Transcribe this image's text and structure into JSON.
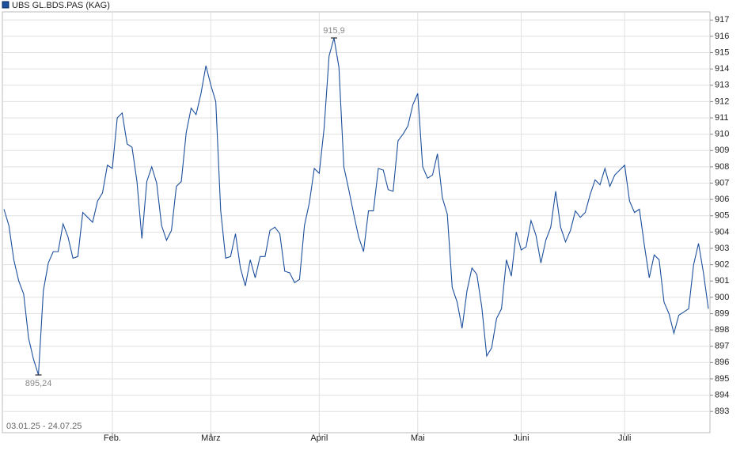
{
  "chart_data": {
    "type": "line",
    "date_range": "03.01.25 - 24.07.25",
    "categories": [
      null,
      null,
      null,
      null,
      null,
      null,
      null,
      null,
      null,
      null,
      null,
      null,
      null,
      null,
      null,
      null,
      null,
      null,
      null,
      null,
      null,
      null,
      "Feb.",
      null,
      null,
      null,
      null,
      null,
      null,
      null,
      null,
      null,
      null,
      null,
      null,
      null,
      null,
      null,
      null,
      null,
      null,
      null,
      "März",
      null,
      null,
      null,
      null,
      null,
      null,
      null,
      null,
      null,
      null,
      null,
      null,
      null,
      null,
      null,
      null,
      null,
      null,
      null,
      null,
      null,
      "April",
      null,
      null,
      null,
      null,
      null,
      null,
      null,
      null,
      null,
      null,
      null,
      null,
      null,
      null,
      null,
      null,
      null,
      null,
      null,
      "Mai",
      null,
      null,
      null,
      null,
      null,
      null,
      null,
      null,
      null,
      null,
      null,
      null,
      null,
      null,
      null,
      null,
      null,
      null,
      null,
      null,
      "Juni",
      null,
      null,
      null,
      null,
      null,
      null,
      null,
      null,
      null,
      null,
      null,
      null,
      null,
      null,
      null,
      null,
      null,
      null,
      null,
      null,
      "Juli",
      null,
      null,
      null,
      null,
      null,
      null,
      null,
      null,
      null,
      null,
      null,
      null,
      null,
      null,
      null,
      null,
      null
    ],
    "series": [
      {
        "name": "UBS GL.BDS.PAS (KAG)",
        "color": "#1c4f9c",
        "values": [
          905.4,
          904.4,
          902.3,
          901.0,
          900.2,
          897.5,
          896.2,
          895.24,
          900.4,
          902.1,
          902.8,
          902.8,
          904.5,
          903.7,
          902.4,
          902.5,
          905.2,
          904.9,
          904.6,
          905.9,
          906.4,
          908.1,
          907.9,
          911.0,
          911.3,
          909.4,
          909.2,
          907.1,
          903.6,
          907.1,
          908.0,
          907.0,
          904.4,
          903.5,
          904.1,
          906.8,
          907.1,
          910.1,
          911.6,
          911.2,
          912.5,
          914.2,
          913.0,
          912.0,
          905.3,
          902.4,
          902.5,
          903.9,
          901.8,
          900.7,
          902.3,
          901.2,
          902.5,
          902.5,
          904.1,
          904.3,
          903.9,
          901.6,
          901.5,
          900.9,
          901.1,
          904.4,
          905.8,
          907.9,
          907.6,
          910.4,
          914.8,
          915.9,
          914.1,
          908.0,
          906.6,
          905.1,
          903.7,
          902.8,
          905.3,
          905.3,
          907.9,
          907.8,
          906.6,
          906.5,
          909.6,
          910.0,
          910.5,
          911.8,
          912.5,
          908.0,
          907.3,
          907.5,
          908.8,
          906.1,
          905.1,
          900.6,
          899.7,
          898.1,
          900.4,
          901.8,
          901.4,
          899.4,
          896.4,
          896.9,
          898.7,
          899.3,
          902.3,
          901.3,
          904.0,
          902.9,
          903.1,
          904.7,
          903.8,
          902.1,
          903.5,
          904.3,
          906.5,
          904.3,
          903.4,
          904.1,
          905.3,
          904.9,
          905.2,
          906.3,
          907.2,
          906.9,
          907.9,
          906.8,
          907.5,
          907.8,
          908.1,
          905.9,
          905.2,
          905.4,
          903.2,
          901.2,
          902.6,
          902.3,
          899.7,
          899.0,
          897.8,
          898.9,
          899.1,
          899.3,
          902.0,
          903.3,
          901.5,
          899.3
        ],
        "value_labels": [
          null,
          null,
          null,
          null,
          null,
          null,
          null,
          "895,24",
          null,
          null,
          null,
          null,
          null,
          null,
          null,
          null,
          null,
          null,
          null,
          null,
          null,
          null,
          null,
          null,
          null,
          null,
          null,
          null,
          null,
          null,
          null,
          null,
          null,
          null,
          null,
          null,
          null,
          null,
          null,
          null,
          null,
          null,
          null,
          null,
          null,
          null,
          null,
          null,
          null,
          null,
          null,
          null,
          null,
          null,
          null,
          null,
          null,
          null,
          null,
          null,
          null,
          null,
          null,
          null,
          null,
          null,
          null,
          "915,9",
          null,
          null,
          null,
          null,
          null,
          null,
          null,
          null,
          null,
          null,
          null,
          null,
          null,
          null,
          null,
          null,
          null,
          null,
          null,
          null,
          null,
          null,
          null,
          null,
          null,
          null,
          null,
          null,
          null,
          null,
          null,
          null,
          null,
          null,
          null,
          null,
          null,
          null,
          null,
          null,
          null,
          null,
          null,
          null,
          null,
          null,
          null,
          null,
          null,
          null,
          null,
          null,
          null,
          null,
          null,
          null,
          null,
          null,
          null,
          null,
          null,
          null,
          null,
          null,
          null,
          null,
          null,
          null,
          null,
          null,
          null,
          null,
          null,
          null,
          null,
          null
        ]
      }
    ],
    "ylim": [
      891.7,
      917.5
    ],
    "yticks": [
      893,
      894,
      895,
      896,
      897,
      898,
      899,
      900,
      901,
      902,
      903,
      904,
      905,
      906,
      907,
      908,
      909,
      910,
      911,
      912,
      913,
      914,
      915,
      916,
      917
    ],
    "grid": true
  }
}
